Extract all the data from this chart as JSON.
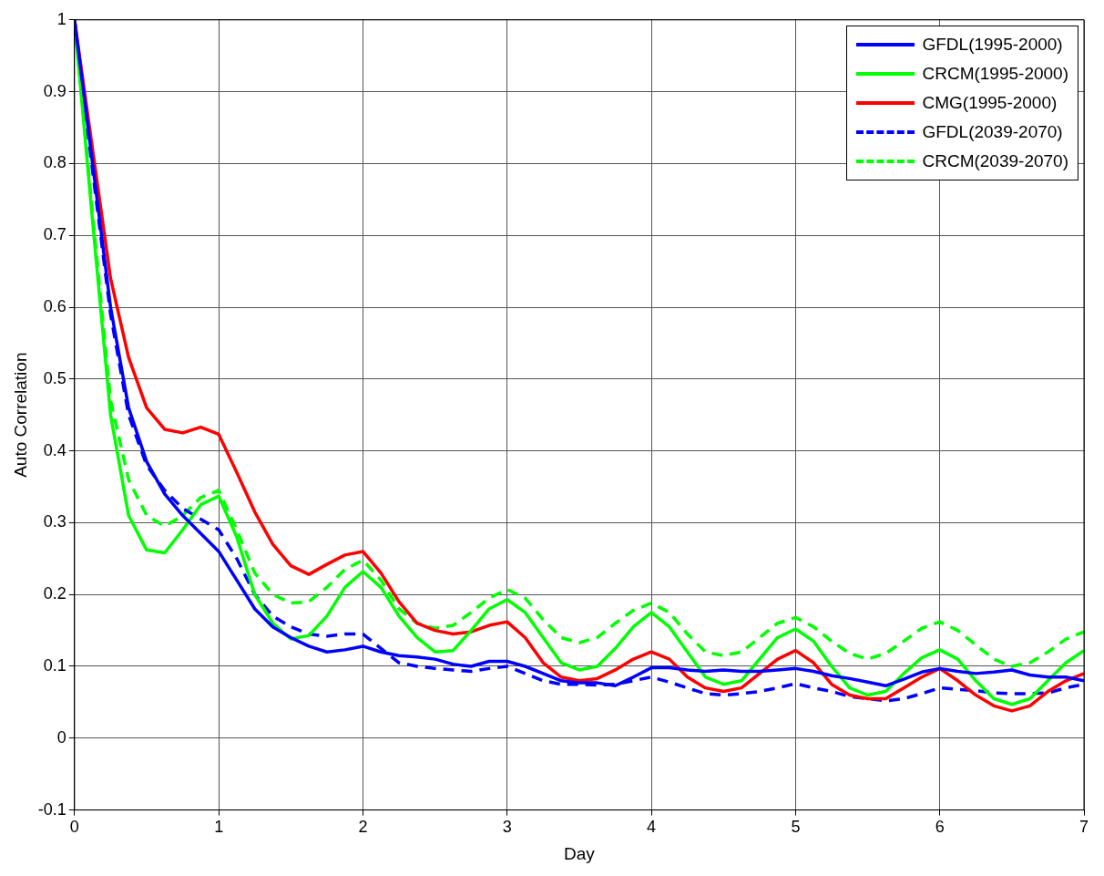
{
  "chart_data": {
    "type": "line",
    "xlabel": "Day",
    "ylabel": "Auto Correlation",
    "xlim": [
      0,
      7
    ],
    "ylim": [
      -0.1,
      1
    ],
    "xticks": [
      0,
      1,
      2,
      3,
      4,
      5,
      6,
      7
    ],
    "yticks": [
      -0.1,
      0,
      0.1,
      0.2,
      0.3,
      0.4,
      0.5,
      0.6,
      0.7,
      0.8,
      0.9,
      1
    ],
    "grid": true,
    "legend": "top right",
    "x": [
      0,
      0.125,
      0.25,
      0.375,
      0.5,
      0.625,
      0.75,
      0.875,
      1,
      1.125,
      1.25,
      1.375,
      1.5,
      1.625,
      1.75,
      1.875,
      2,
      2.125,
      2.25,
      2.375,
      2.5,
      2.625,
      2.75,
      2.875,
      3,
      3.125,
      3.25,
      3.375,
      3.5,
      3.625,
      3.75,
      3.875,
      4,
      4.125,
      4.25,
      4.375,
      4.5,
      4.625,
      4.75,
      4.875,
      5,
      5.125,
      5.25,
      5.375,
      5.5,
      5.625,
      5.75,
      5.875,
      6,
      6.125,
      6.25,
      6.375,
      6.5,
      6.625,
      6.75,
      6.875,
      7
    ],
    "series": [
      {
        "name": "GFDL(1995-2000)",
        "color": "#0000ff",
        "line_style": "solid",
        "values": [
          1.0,
          0.8,
          0.6,
          0.46,
          0.385,
          0.34,
          0.31,
          0.285,
          0.26,
          0.22,
          0.18,
          0.155,
          0.14,
          0.128,
          0.12,
          0.123,
          0.128,
          0.12,
          0.115,
          0.113,
          0.11,
          0.103,
          0.1,
          0.107,
          0.107,
          0.1,
          0.09,
          0.08,
          0.077,
          0.077,
          0.073,
          0.085,
          0.098,
          0.098,
          0.095,
          0.093,
          0.095,
          0.093,
          0.093,
          0.095,
          0.097,
          0.093,
          0.087,
          0.083,
          0.078,
          0.073,
          0.082,
          0.092,
          0.097,
          0.093,
          0.09,
          0.092,
          0.095,
          0.088,
          0.085,
          0.085,
          0.08
        ]
      },
      {
        "name": "CRCM(1995-2000)",
        "color": "#00ff00",
        "line_style": "solid",
        "values": [
          1.0,
          0.72,
          0.45,
          0.31,
          0.262,
          0.258,
          0.29,
          0.325,
          0.337,
          0.28,
          0.2,
          0.16,
          0.138,
          0.143,
          0.17,
          0.21,
          0.232,
          0.21,
          0.17,
          0.14,
          0.12,
          0.122,
          0.15,
          0.18,
          0.193,
          0.175,
          0.14,
          0.105,
          0.095,
          0.1,
          0.125,
          0.155,
          0.175,
          0.155,
          0.12,
          0.085,
          0.075,
          0.08,
          0.11,
          0.14,
          0.152,
          0.135,
          0.1,
          0.07,
          0.06,
          0.065,
          0.09,
          0.112,
          0.123,
          0.11,
          0.08,
          0.055,
          0.047,
          0.055,
          0.08,
          0.105,
          0.122
        ]
      },
      {
        "name": "CMG(1995-2000)",
        "color": "#ff0000",
        "line_style": "solid",
        "values": [
          1.0,
          0.82,
          0.64,
          0.53,
          0.46,
          0.43,
          0.425,
          0.433,
          0.423,
          0.37,
          0.315,
          0.27,
          0.24,
          0.228,
          0.242,
          0.255,
          0.26,
          0.23,
          0.19,
          0.16,
          0.15,
          0.145,
          0.148,
          0.157,
          0.162,
          0.14,
          0.105,
          0.085,
          0.08,
          0.083,
          0.095,
          0.11,
          0.12,
          0.11,
          0.085,
          0.07,
          0.065,
          0.07,
          0.09,
          0.11,
          0.122,
          0.105,
          0.075,
          0.06,
          0.055,
          0.055,
          0.07,
          0.085,
          0.097,
          0.08,
          0.06,
          0.045,
          0.038,
          0.045,
          0.065,
          0.08,
          0.09
        ]
      },
      {
        "name": "GFDL(2039-2070)",
        "color": "#0000ff",
        "line_style": "dashed",
        "values": [
          1.0,
          0.79,
          0.59,
          0.45,
          0.38,
          0.345,
          0.32,
          0.305,
          0.29,
          0.25,
          0.2,
          0.17,
          0.155,
          0.145,
          0.142,
          0.145,
          0.145,
          0.125,
          0.105,
          0.1,
          0.097,
          0.095,
          0.093,
          0.097,
          0.1,
          0.09,
          0.08,
          0.075,
          0.075,
          0.074,
          0.075,
          0.08,
          0.085,
          0.078,
          0.07,
          0.062,
          0.06,
          0.062,
          0.065,
          0.07,
          0.076,
          0.07,
          0.065,
          0.058,
          0.055,
          0.052,
          0.055,
          0.062,
          0.07,
          0.068,
          0.066,
          0.063,
          0.062,
          0.062,
          0.063,
          0.07,
          0.075
        ]
      },
      {
        "name": "CRCM(2039-2070)",
        "color": "#00ff00",
        "line_style": "dashed",
        "values": [
          1.0,
          0.73,
          0.47,
          0.36,
          0.31,
          0.295,
          0.31,
          0.335,
          0.345,
          0.29,
          0.23,
          0.2,
          0.188,
          0.19,
          0.21,
          0.235,
          0.248,
          0.22,
          0.18,
          0.16,
          0.153,
          0.157,
          0.175,
          0.195,
          0.207,
          0.195,
          0.165,
          0.14,
          0.133,
          0.14,
          0.16,
          0.178,
          0.188,
          0.175,
          0.145,
          0.12,
          0.115,
          0.12,
          0.14,
          0.16,
          0.168,
          0.155,
          0.135,
          0.118,
          0.11,
          0.118,
          0.135,
          0.153,
          0.162,
          0.15,
          0.13,
          0.11,
          0.1,
          0.105,
          0.12,
          0.138,
          0.148
        ]
      }
    ]
  }
}
